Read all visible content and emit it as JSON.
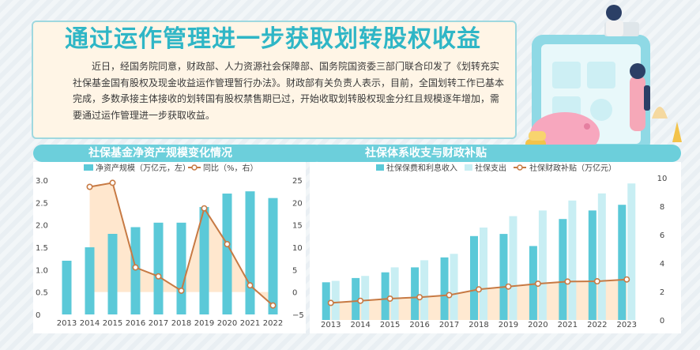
{
  "title": "通过运作管理进一步获取划转股权收益",
  "body": "近日，经国务院同意，财政部、人力资源社会保障部、国务院国资委三部门联合印发了《划转充实社保基金国有股权及现金收益运作管理暂行办法》。财政部有关负责人表示，目前，全国划转工作已基本完成，多数承接主体接收的划转国有股权禁售期已过，开始收取划转股权现金分红且规模逐年增加，需要通过运作管理进一步获取收益。",
  "colors": {
    "accent": "#2fb6c6",
    "bar_dark": "#5bc9d8",
    "bar_light": "#c8eef3",
    "line": "#c77a44",
    "band": "#ffe3c6"
  },
  "chart_data": [
    {
      "type": "bar",
      "title": "社保基金净资产规模变化情况",
      "categories": [
        "2013",
        "2014",
        "2015",
        "2016",
        "2017",
        "2018",
        "2019",
        "2020",
        "2021",
        "2022"
      ],
      "series": [
        {
          "name": "净资产规模（万亿元，左）",
          "type": "bar",
          "axis": "left",
          "values": [
            1.2,
            1.5,
            1.8,
            1.95,
            2.05,
            2.05,
            2.4,
            2.7,
            2.75,
            2.6
          ]
        },
        {
          "name": "同比（%，右）",
          "type": "line",
          "axis": "right",
          "values": [
            null,
            23.5,
            24.4,
            5.5,
            3.5,
            0.3,
            18.7,
            10.7,
            1.5,
            -3.0
          ]
        }
      ],
      "ylim_left": [
        0,
        3.0
      ],
      "yticks_left": [
        "0",
        "0.5",
        "1.0",
        "1.5",
        "2.0",
        "2.5",
        "3.0"
      ],
      "ylim_right": [
        -5,
        25
      ],
      "yticks_right": [
        "−5",
        "0",
        "5",
        "10",
        "15",
        "20",
        "25"
      ],
      "legend_position": "top"
    },
    {
      "type": "bar",
      "title": "社保体系收支与财政补贴",
      "categories": [
        "2013",
        "2014",
        "2015",
        "2016",
        "2017",
        "2018",
        "2019",
        "2020",
        "2021",
        "2022",
        "2023"
      ],
      "series": [
        {
          "name": "社保保费和利息收入",
          "type": "bar",
          "axis": "left",
          "values": [
            2.65,
            2.95,
            3.35,
            3.7,
            4.4,
            5.9,
            6.05,
            5.2,
            7.1,
            7.7,
            8.1
          ]
        },
        {
          "name": "社保支出",
          "type": "bar",
          "axis": "left",
          "values": [
            2.75,
            3.1,
            3.7,
            4.2,
            4.65,
            6.5,
            7.3,
            7.7,
            8.4,
            8.9,
            9.6
          ]
        },
        {
          "name": "社保财政补贴（万亿元）",
          "type": "line",
          "axis": "left",
          "values": [
            1.2,
            1.35,
            1.5,
            1.6,
            1.75,
            2.15,
            2.35,
            2.55,
            2.7,
            2.72,
            2.85
          ]
        }
      ],
      "ylim_right": [
        0,
        10
      ],
      "yticks_right": [
        "0",
        "2",
        "4",
        "6",
        "8",
        "10"
      ],
      "legend_position": "top"
    }
  ]
}
